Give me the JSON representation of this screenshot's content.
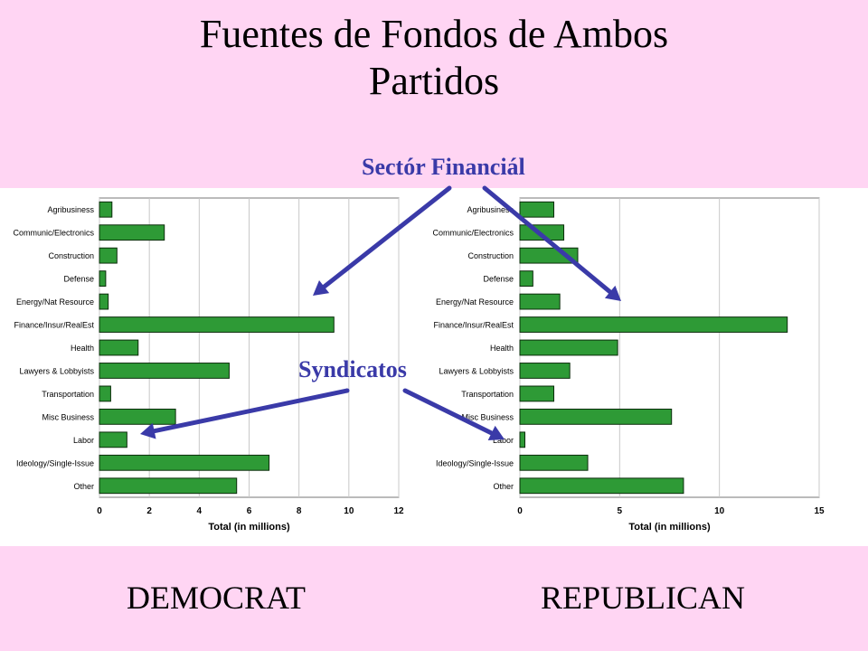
{
  "slide": {
    "title_line1": "Fuentes de Fondos de Ambos",
    "title_line2": "Partidos",
    "party_left": "DEMOCRAT",
    "party_right": "REPUBLICAN",
    "annotation_finance": "Sectór Financiál",
    "annotation_unions": "Syndicatos",
    "background_color": "#ffd5f3",
    "arrow_color": "#3a3aa8"
  },
  "chart_data": [
    {
      "type": "bar",
      "orientation": "horizontal",
      "categories": [
        "Agribusiness",
        "Communic/Electronics",
        "Construction",
        "Defense",
        "Energy/Nat Resource",
        "Finance/Insur/RealEst",
        "Health",
        "Lawyers & Lobbyists",
        "Transportation",
        "Misc Business",
        "Labor",
        "Ideology/Single-Issue",
        "Other"
      ],
      "values": [
        0.5,
        2.6,
        0.7,
        0.25,
        0.35,
        9.4,
        1.55,
        5.2,
        0.45,
        3.05,
        1.1,
        6.8,
        5.5
      ],
      "xlabel": "Total (in millions)",
      "xlim": [
        0,
        12
      ],
      "xticks": [
        0,
        2,
        4,
        6,
        8,
        10,
        12
      ],
      "bar_color": "#2e9a36",
      "grid": true
    },
    {
      "type": "bar",
      "orientation": "horizontal",
      "categories": [
        "Agribusiness",
        "Communic/Electronics",
        "Construction",
        "Defense",
        "Energy/Nat Resource",
        "Finance/Insur/RealEst",
        "Health",
        "Lawyers & Lobbyists",
        "Transportation",
        "Misc Business",
        "Labor",
        "Ideology/Single-Issue",
        "Other"
      ],
      "values": [
        1.7,
        2.2,
        2.9,
        0.65,
        2.0,
        13.4,
        4.9,
        2.5,
        1.7,
        7.6,
        0.25,
        3.4,
        8.2
      ],
      "xlabel": "Total (in millions)",
      "xlim": [
        0,
        15
      ],
      "xticks": [
        0,
        5,
        10,
        15
      ],
      "bar_color": "#2e9a36",
      "grid": true
    }
  ]
}
